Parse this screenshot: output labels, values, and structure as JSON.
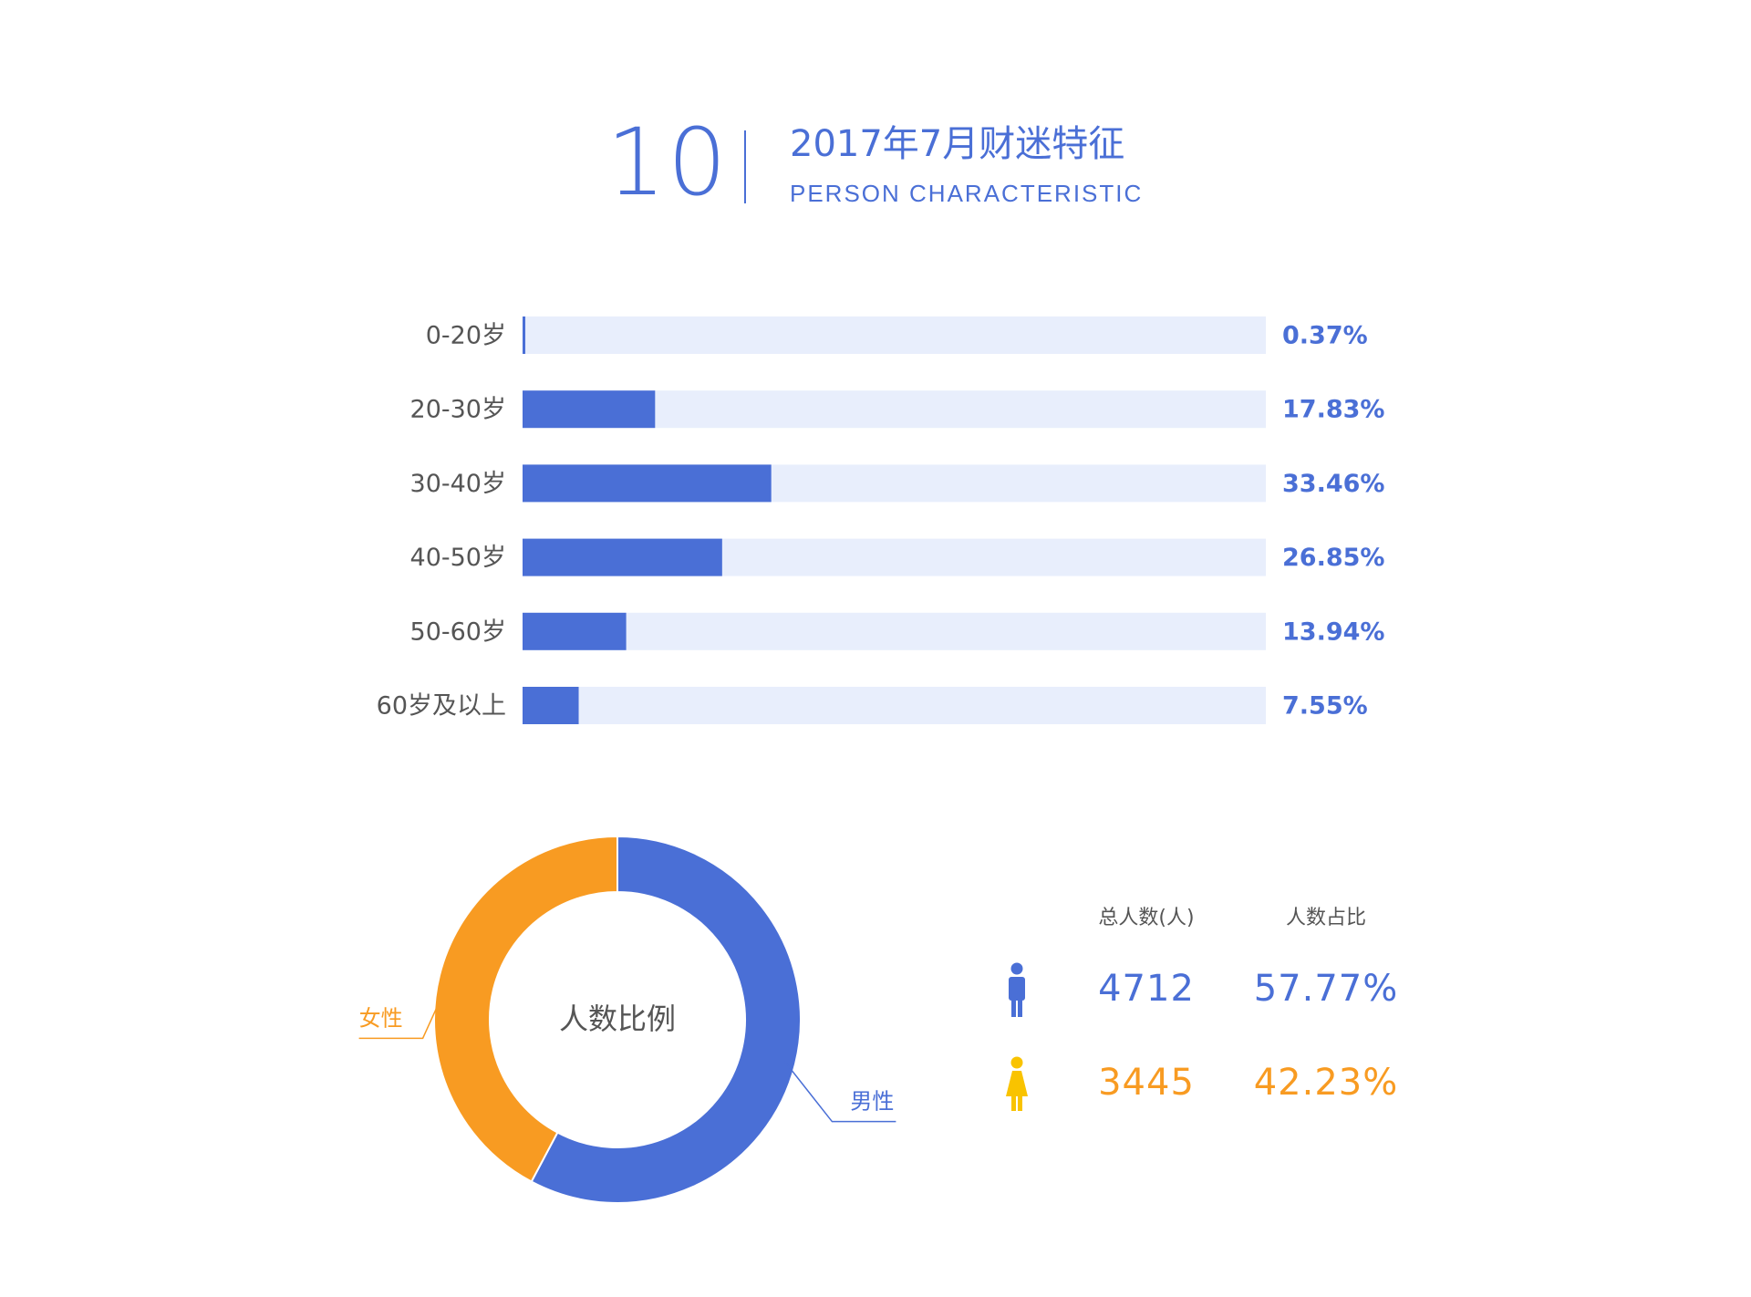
{
  "header": {
    "number": "10",
    "title_cn": "2017年7月财迷特征",
    "title_en": "PERSON CHARACTERISTIC"
  },
  "colors": {
    "accent_blue": "#4a6fd6",
    "bar_track": "#e8eefc",
    "accent_orange": "#f89b22",
    "female_icon": "#f9c300",
    "label_gray": "#555555"
  },
  "chart_data": [
    {
      "type": "bar",
      "orientation": "horizontal",
      "categories": [
        "0-20岁",
        "20-30岁",
        "30-40岁",
        "40-50岁",
        "50-60岁",
        "60岁及以上"
      ],
      "values": [
        0.37,
        17.83,
        33.46,
        26.85,
        13.94,
        7.55
      ],
      "value_labels": [
        "0.37%",
        "17.83%",
        "33.46%",
        "26.85%",
        "13.94%",
        "7.55%"
      ],
      "unit": "%",
      "xlim": [
        0,
        100
      ]
    },
    {
      "type": "pie",
      "donut": true,
      "center_label": "人数比例",
      "categories": [
        "男性",
        "女性"
      ],
      "values": [
        57.77,
        42.23
      ],
      "colors": [
        "#4a6fd6",
        "#f89b22"
      ]
    }
  ],
  "stats": {
    "headers": [
      "总人数(人)",
      "人数占比"
    ],
    "rows": [
      {
        "icon": "male-icon",
        "count": "4712",
        "share": "57.77%",
        "color": "#4a6fd6"
      },
      {
        "icon": "female-icon",
        "count": "3445",
        "share": "42.23%",
        "color": "#f89b22"
      }
    ]
  }
}
